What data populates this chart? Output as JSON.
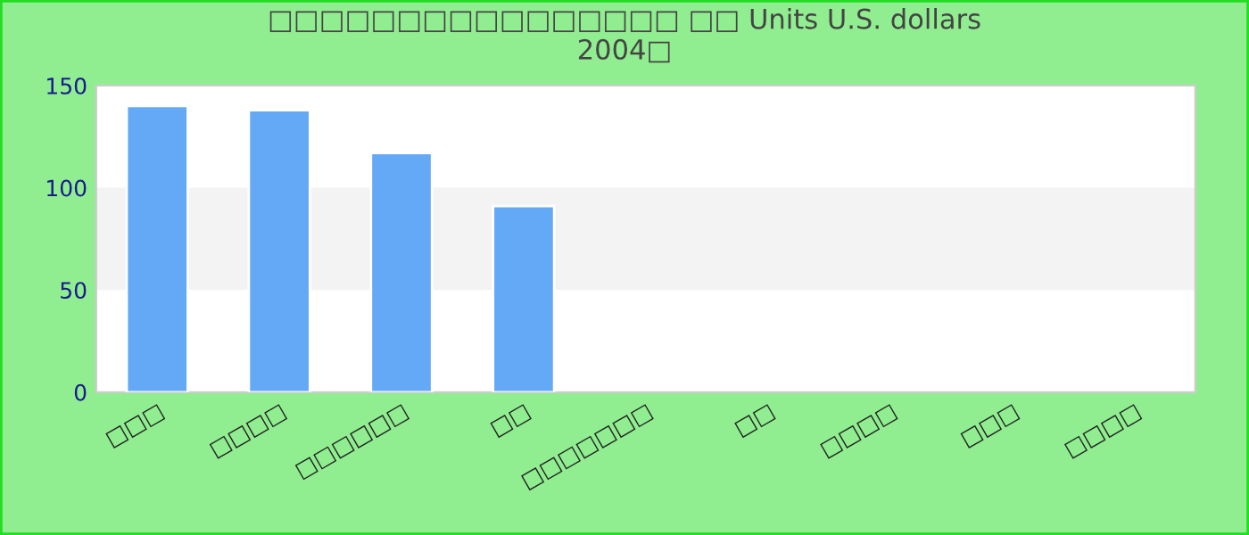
{
  "chart_data": {
    "type": "bar",
    "title": "□□□□□□□□□□□□□□□□ □□ Units U.S. dollars\n2004□",
    "categories": [
      "□□□",
      "□□□□",
      "□□□□□□",
      "□□",
      "□□□□□□□",
      "□□",
      "□□□□",
      "□□□",
      "□□□□"
    ],
    "series": [
      {
        "color": "#63a9f5",
        "values": [
          140,
          138,
          117,
          91,
          null,
          null,
          null,
          null,
          null
        ]
      }
    ],
    "ylim": [
      0,
      150
    ],
    "yticks": [
      0,
      50,
      100,
      150
    ],
    "grid": false,
    "legend": false,
    "bands": [
      {
        "axis": "y",
        "from": 50,
        "to": 100,
        "color": "#f3f3f3"
      }
    ]
  }
}
